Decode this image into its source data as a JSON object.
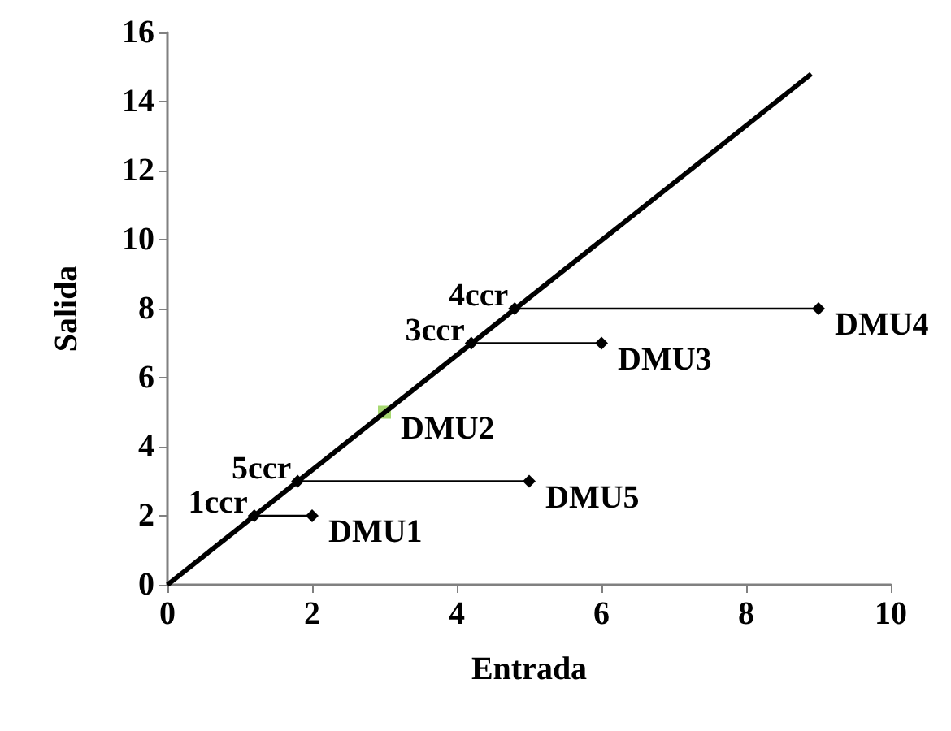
{
  "chart_data": {
    "type": "line",
    "xlabel": "Entrada",
    "ylabel": "Salida",
    "xlim": [
      0,
      10
    ],
    "xticks": [
      0,
      2,
      4,
      6,
      8,
      10
    ],
    "ylim": [
      0,
      16
    ],
    "yticks": [
      0,
      2,
      4,
      6,
      8,
      10,
      12,
      14,
      16
    ],
    "series": [
      {
        "color": "#000000",
        "x": [
          0,
          8.9
        ],
        "values": [
          0,
          14.8
        ],
        "marker": "none"
      },
      {
        "color": "#000000",
        "x": [
          1.2,
          2
        ],
        "values": [
          2,
          2
        ],
        "marker": "diamond"
      },
      {
        "color": "#000000",
        "x": [
          1.8,
          5
        ],
        "values": [
          3,
          3
        ],
        "marker": "diamond"
      },
      {
        "color": "#000000",
        "x": [
          4.2,
          6
        ],
        "values": [
          7,
          7
        ],
        "marker": "diamond"
      },
      {
        "color": "#000000",
        "x": [
          4.8,
          9
        ],
        "values": [
          8,
          8
        ],
        "marker": "diamond"
      },
      {
        "type": "scatter",
        "color": "#92d050",
        "x": [
          3
        ],
        "values": [
          5
        ],
        "marker": "square"
      }
    ],
    "annotations": [
      {
        "text": "1ccr",
        "x": 1.2,
        "y": 2
      },
      {
        "text": "DMU1",
        "x": 2,
        "y": 2
      },
      {
        "text": "5ccr",
        "x": 1.8,
        "y": 3
      },
      {
        "text": "DMU5",
        "x": 5,
        "y": 3
      },
      {
        "text": "DMU2",
        "x": 3,
        "y": 5
      },
      {
        "text": "3ccr",
        "x": 4.2,
        "y": 7
      },
      {
        "text": "DMU3",
        "x": 6,
        "y": 7
      },
      {
        "text": "4ccr",
        "x": 4.8,
        "y": 8
      },
      {
        "text": "DMU4",
        "x": 9,
        "y": 8
      }
    ]
  }
}
